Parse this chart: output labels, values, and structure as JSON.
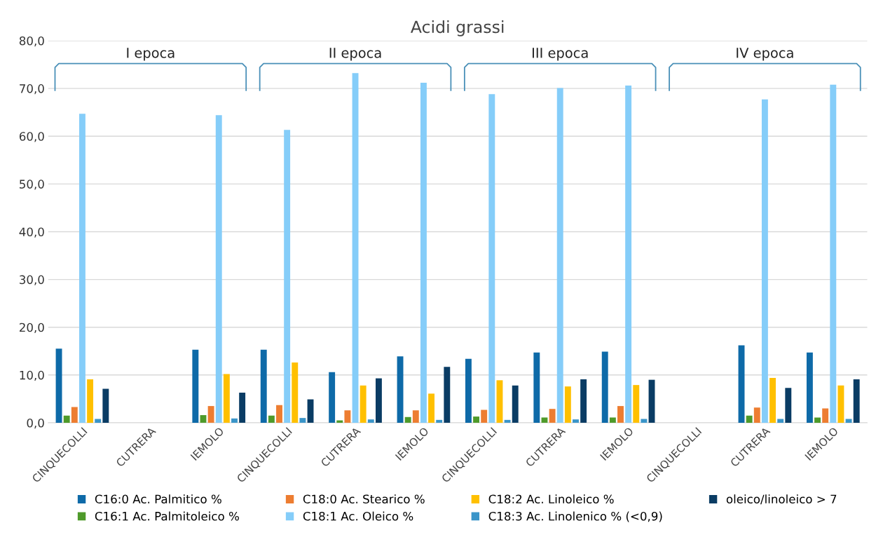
{
  "chart_data": {
    "type": "bar",
    "title": "Acidi grassi",
    "categories": [
      "CINQUECOLLI",
      "CUTRERA",
      "IEMOLO",
      "CINQUECOLLI",
      "CUTRERA",
      "IEMOLO",
      "CINQUECOLLI",
      "CUTRERA",
      "IEMOLO",
      "CINQUECOLLI",
      "CUTRERA",
      "IEMOLO"
    ],
    "series": [
      {
        "name": "C16:0 Ac. Palmitico %",
        "color": "#0e6aa8",
        "values": [
          15.5,
          null,
          15.3,
          15.3,
          10.6,
          13.9,
          13.4,
          14.7,
          14.9,
          null,
          16.2,
          14.7
        ]
      },
      {
        "name": "C16:1 Ac. Palmitoleico %",
        "color": "#4e9a2a",
        "values": [
          1.5,
          null,
          1.6,
          1.5,
          0.5,
          1.2,
          1.3,
          1.1,
          1.1,
          null,
          1.5,
          1.1
        ]
      },
      {
        "name": "C18:0 Ac. Stearico %",
        "color": "#ed7d31",
        "values": [
          3.3,
          null,
          3.5,
          3.7,
          2.6,
          2.6,
          2.7,
          2.9,
          3.5,
          null,
          3.2,
          3.0
        ]
      },
      {
        "name": "C18:1 Ac. Oleico %",
        "color": "#85cdf9",
        "values": [
          64.7,
          null,
          64.4,
          61.3,
          73.2,
          71.2,
          68.8,
          70.1,
          70.6,
          null,
          67.7,
          70.8
        ]
      },
      {
        "name": "C18:2 Ac. Linoleico %",
        "color": "#ffc000",
        "values": [
          9.1,
          null,
          10.2,
          12.6,
          7.8,
          6.1,
          8.9,
          7.6,
          7.9,
          null,
          9.4,
          7.8
        ]
      },
      {
        "name": "C18:3 Ac. Linolenico % (<0,9)",
        "color": "#3a95c9",
        "values": [
          0.8,
          null,
          0.9,
          1.0,
          0.7,
          0.6,
          0.6,
          0.7,
          0.8,
          null,
          0.8,
          0.8
        ]
      },
      {
        "name": "oleico/linoleico > 7",
        "color": "#0a3c64",
        "values": [
          7.1,
          null,
          6.3,
          4.9,
          9.3,
          11.7,
          7.8,
          9.1,
          9.0,
          null,
          7.3,
          9.1
        ]
      }
    ],
    "annotations": [
      "I epoca",
      "II epoca",
      "III epoca",
      "IV epoca"
    ],
    "ylim": [
      0,
      80
    ],
    "yticks": [
      {
        "value": 0,
        "label": "0,0"
      },
      {
        "value": 10,
        "label": "10,0"
      },
      {
        "value": 20,
        "label": "20,0"
      },
      {
        "value": 30,
        "label": "30,0"
      },
      {
        "value": 40,
        "label": "40,0"
      },
      {
        "value": 50,
        "label": "50,0"
      },
      {
        "value": 60,
        "label": "60,0"
      },
      {
        "value": 70,
        "label": "70,0"
      },
      {
        "value": 80,
        "label": "80,0"
      }
    ],
    "grid": "y",
    "legend": "bottom"
  }
}
